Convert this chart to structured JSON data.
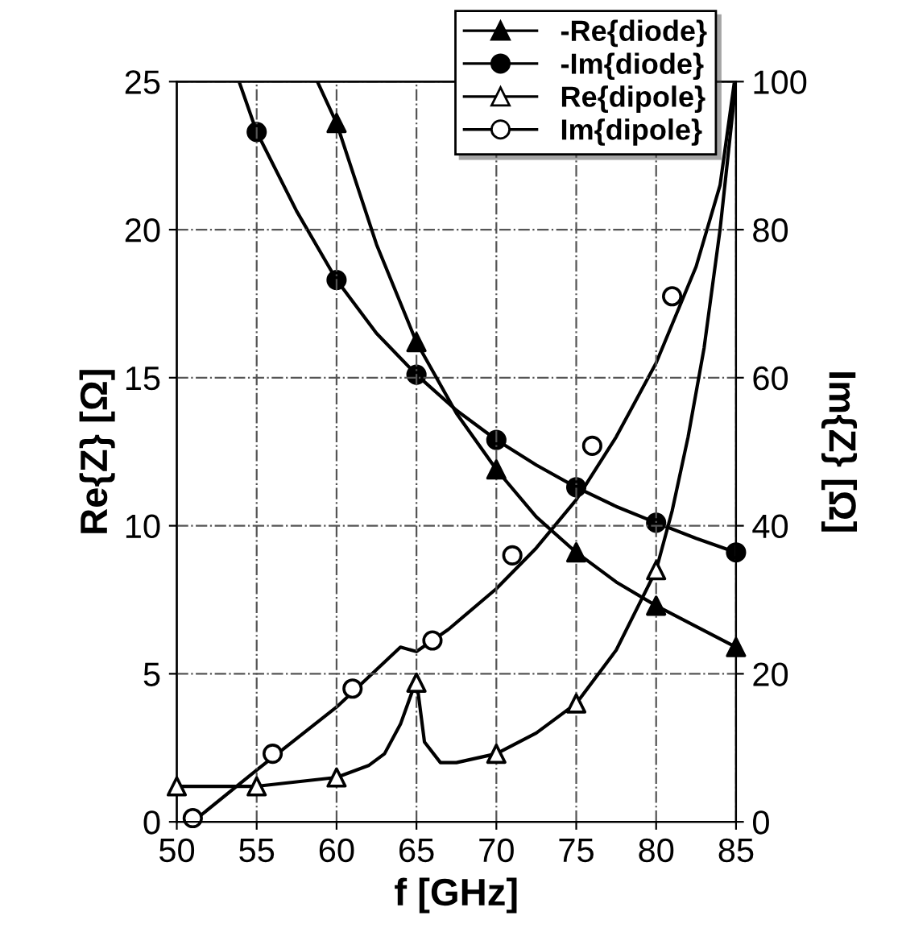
{
  "chart_data": {
    "type": "line",
    "xlabel": "f [GHz]",
    "ylabel": "Re{Z} [Ω]",
    "y2label": "Im{Z} [Ω]",
    "xlim": [
      50,
      85
    ],
    "xticks": [
      50,
      55,
      60,
      65,
      70,
      75,
      80,
      85
    ],
    "ylim": [
      0,
      25
    ],
    "yticks": [
      0,
      5,
      10,
      15,
      20,
      25
    ],
    "y2lim": [
      0,
      100
    ],
    "y2ticks": [
      0,
      20,
      40,
      60,
      80,
      100
    ],
    "grid": true,
    "legend": "top right",
    "series": [
      {
        "axis": "y",
        "marker": "none",
        "color": "#000000",
        "x": [
          58.8,
          60,
          62.5,
          65,
          67.5,
          70,
          72.5,
          75,
          77.5,
          80,
          82.5,
          85
        ],
        "values": [
          25,
          23.6,
          19.5,
          16.2,
          13.8,
          11.9,
          10.3,
          9.1,
          8.1,
          7.3,
          6.6,
          5.9
        ]
      },
      {
        "axis": "y2",
        "marker": "none",
        "color": "#000000",
        "x": [
          53.9,
          55,
          57.5,
          60,
          62.5,
          65,
          67.5,
          70,
          72.5,
          75,
          77.5,
          80,
          82.5,
          85
        ],
        "values": [
          100,
          93.2,
          82.5,
          73.2,
          66,
          60.4,
          55.6,
          51.6,
          48.2,
          45.2,
          42.6,
          40.4,
          38.3,
          36.4
        ]
      },
      {
        "axis": "y",
        "marker": "none",
        "color": "#000000",
        "x": [
          50,
          55,
          60,
          62,
          63,
          64,
          65,
          65.5,
          66.5,
          67.5,
          70,
          72.5,
          75,
          77.5,
          80,
          81,
          82,
          83,
          84,
          85
        ],
        "values": [
          1.2,
          1.2,
          1.5,
          1.9,
          2.3,
          3.3,
          4.8,
          2.7,
          2.0,
          2.0,
          2.3,
          3.0,
          4.0,
          5.8,
          8.5,
          10.5,
          13,
          16,
          20,
          25
        ]
      },
      {
        "axis": "y2",
        "marker": "none",
        "color": "#000000",
        "x": [
          51,
          55,
          60,
          64,
          65,
          67,
          70,
          72.5,
          75,
          77.5,
          80,
          82.5,
          84,
          84.9
        ],
        "values": [
          0,
          7,
          15.5,
          23.6,
          23,
          26,
          31.5,
          37,
          43.5,
          52,
          62,
          75,
          86,
          100
        ]
      },
      {
        "type": "scatter",
        "name": "-Re{diode}",
        "axis": "y",
        "marker": "triangle",
        "color": "#000000",
        "x": [
          60,
          65,
          70,
          75,
          80,
          85
        ],
        "values": [
          23.6,
          16.2,
          11.9,
          9.1,
          7.3,
          5.9
        ]
      },
      {
        "type": "scatter",
        "name": "-Im{diode}",
        "axis": "y2",
        "marker": "circle",
        "color": "#000000",
        "x": [
          55,
          60,
          65,
          70,
          75,
          80,
          85
        ],
        "values": [
          93.2,
          73.2,
          60.4,
          51.6,
          45.2,
          40.4,
          36.4
        ]
      },
      {
        "type": "scatter",
        "name": "Re{dipole}",
        "axis": "y",
        "marker": "triangle",
        "color": "#000000",
        "colors": [
          "#ffffff",
          "#ffffff",
          "#ffffff",
          "#ffffff",
          "#ffffff",
          "#ffffff",
          "#ffffff"
        ],
        "x": [
          50,
          55,
          60,
          65,
          70,
          75,
          80
        ],
        "values": [
          1.2,
          1.2,
          1.5,
          4.7,
          2.3,
          4.0,
          8.5
        ]
      },
      {
        "type": "scatter",
        "name": "Im{dipole}",
        "axis": "y2",
        "marker": "circle",
        "color": "#000000",
        "colors": [
          "#ffffff",
          "#ffffff",
          "#ffffff",
          "#ffffff",
          "#ffffff",
          "#ffffff",
          "#ffffff"
        ],
        "x": [
          51,
          56,
          61,
          66,
          71,
          76,
          81
        ],
        "values": [
          0.5,
          9.2,
          18,
          24.5,
          36,
          50.8,
          71
        ]
      }
    ]
  }
}
